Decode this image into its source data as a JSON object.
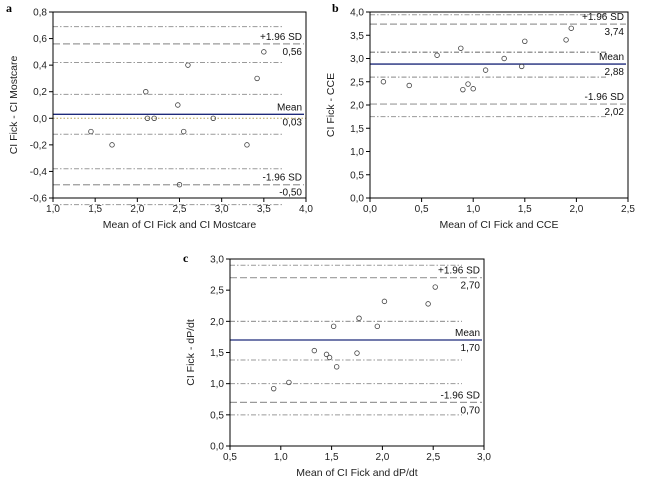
{
  "chart_data": [
    {
      "type": "scatter",
      "panel": "a",
      "xlabel": "Mean of CI Fick and CI Mostcare",
      "ylabel": "CI Fick - CI Mostcare",
      "xlim": [
        1.0,
        4.0
      ],
      "ylim": [
        -0.6,
        0.8
      ],
      "xticks": [
        "1,0",
        "1,5",
        "2,0",
        "2,5",
        "3,0",
        "3,5",
        "4,0"
      ],
      "yticks": [
        "-0,6",
        "-0,4",
        "-0,2",
        "0,0",
        "0,2",
        "0,4",
        "0,6",
        "0,8"
      ],
      "x": [
        1.45,
        1.7,
        2.1,
        2.12,
        2.2,
        2.48,
        2.5,
        2.55,
        2.6,
        2.9,
        3.3,
        3.42,
        3.5
      ],
      "y": [
        -0.1,
        -0.2,
        0.2,
        0.0,
        0.0,
        0.1,
        -0.5,
        -0.1,
        0.4,
        0.0,
        -0.2,
        0.3,
        0.5
      ],
      "mean": 0.03,
      "upper": 0.56,
      "lower": -0.5,
      "upper_ci": [
        0.42,
        0.69
      ],
      "mean_ci": [
        -0.12,
        0.18
      ],
      "lower_ci": [
        -0.65,
        -0.38
      ],
      "labels": {
        "upper_title": "+1.96 SD",
        "upper_value": "0,56",
        "mean_title": "Mean",
        "mean_value": "0,03",
        "lower_title": "-1.96 SD",
        "lower_value": "-0,50"
      }
    },
    {
      "type": "scatter",
      "panel": "b",
      "xlabel": "Mean of CI Fick and CCE",
      "ylabel": "CI Fick - CCE",
      "xlim": [
        0.0,
        2.5
      ],
      "ylim": [
        0.0,
        4.0
      ],
      "xticks": [
        "0,0",
        "0,5",
        "1,0",
        "1,5",
        "2,0",
        "2,5"
      ],
      "yticks": [
        "0,0",
        "0,5",
        "1,0",
        "1,5",
        "2,0",
        "2,5",
        "3,0",
        "3,5",
        "4,0"
      ],
      "x": [
        0.13,
        0.38,
        0.65,
        0.88,
        0.9,
        0.95,
        1.0,
        1.12,
        1.3,
        1.47,
        1.5,
        1.9,
        1.95
      ],
      "y": [
        2.5,
        2.42,
        3.07,
        3.22,
        2.33,
        2.45,
        2.35,
        2.75,
        3.0,
        2.83,
        3.37,
        3.4,
        3.65
      ],
      "mean": 2.88,
      "upper": 3.74,
      "lower": 2.02,
      "upper_ci": [
        3.13,
        3.94
      ],
      "mean_ci": [
        2.6,
        3.14
      ],
      "lower_ci": [
        1.75,
        2.6
      ],
      "labels": {
        "upper_title": "+1.96 SD",
        "upper_value": "3,74",
        "mean_title": "Mean",
        "mean_value": "2,88",
        "lower_title": "-1.96 SD",
        "lower_value": "2,02"
      }
    },
    {
      "type": "scatter",
      "panel": "c",
      "xlabel": "Mean of CI Fick and dP/dt",
      "ylabel": "CI Fick - dP/dt",
      "xlim": [
        0.5,
        3.0
      ],
      "ylim": [
        0.0,
        3.0
      ],
      "xticks": [
        "0,5",
        "1,0",
        "1,5",
        "2,0",
        "2,5",
        "3,0"
      ],
      "yticks": [
        "0,0",
        "0,5",
        "1,0",
        "1,5",
        "2,0",
        "2,5",
        "3,0"
      ],
      "x": [
        0.93,
        1.08,
        1.33,
        1.45,
        1.48,
        1.52,
        1.55,
        1.75,
        1.77,
        1.95,
        2.02,
        2.45,
        2.52
      ],
      "y": [
        0.92,
        1.02,
        1.53,
        1.47,
        1.42,
        1.92,
        1.27,
        1.49,
        2.05,
        1.92,
        2.32,
        2.28,
        2.55
      ],
      "mean": 1.7,
      "upper": 2.7,
      "lower": 0.7,
      "upper_ci": [
        2.0,
        2.9
      ],
      "mean_ci": [
        1.38,
        2.0
      ],
      "lower_ci": [
        0.5,
        1.0
      ],
      "labels": {
        "upper_title": "+1.96 SD",
        "upper_value": "2,70",
        "mean_title": "Mean",
        "mean_value": "1,70",
        "lower_title": "-1.96 SD",
        "lower_value": "0,70"
      }
    }
  ],
  "colors": {
    "mean_line": "#1f2a7a",
    "sd_line": "#9a9a9a",
    "ci_line": "#9a9a9a",
    "zero_line": "#b5a25a",
    "frame": "#000000",
    "point": "#444444"
  }
}
